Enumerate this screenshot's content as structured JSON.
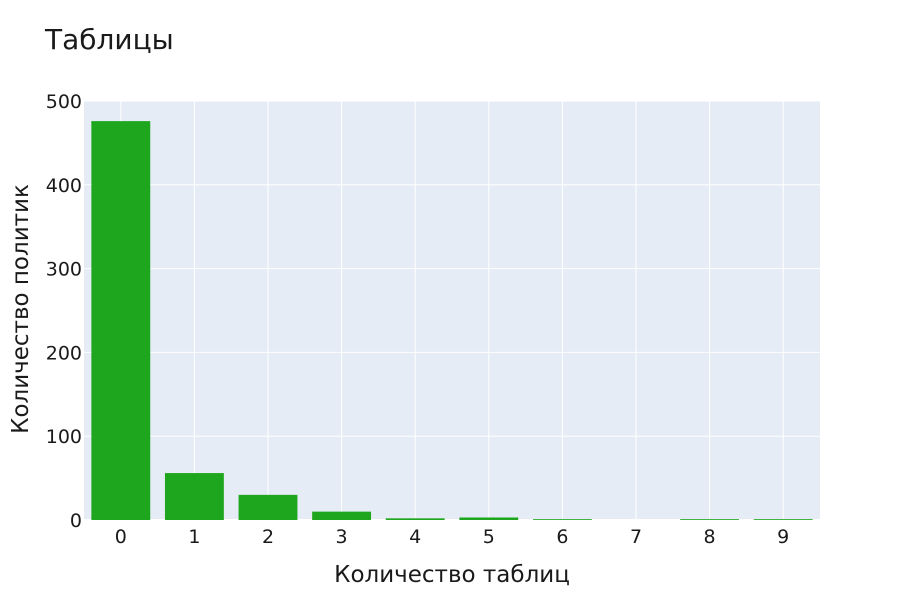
{
  "chart_data": {
    "type": "bar",
    "title": "Таблицы",
    "xlabel": "Количество таблиц",
    "ylabel": "Количество политик",
    "categories": [
      "0",
      "1",
      "2",
      "3",
      "4",
      "5",
      "6",
      "7",
      "8",
      "9"
    ],
    "values": [
      476,
      56,
      30,
      10,
      2,
      3,
      1,
      0,
      1,
      1
    ],
    "ylim": [
      0,
      500
    ],
    "yticks": [
      0,
      100,
      200,
      300,
      400,
      500
    ],
    "grid": true,
    "legend": "none",
    "colors": {
      "bar": "#1fa61f",
      "plot_background": "#e5ecf6",
      "grid": "#ffffff"
    }
  }
}
